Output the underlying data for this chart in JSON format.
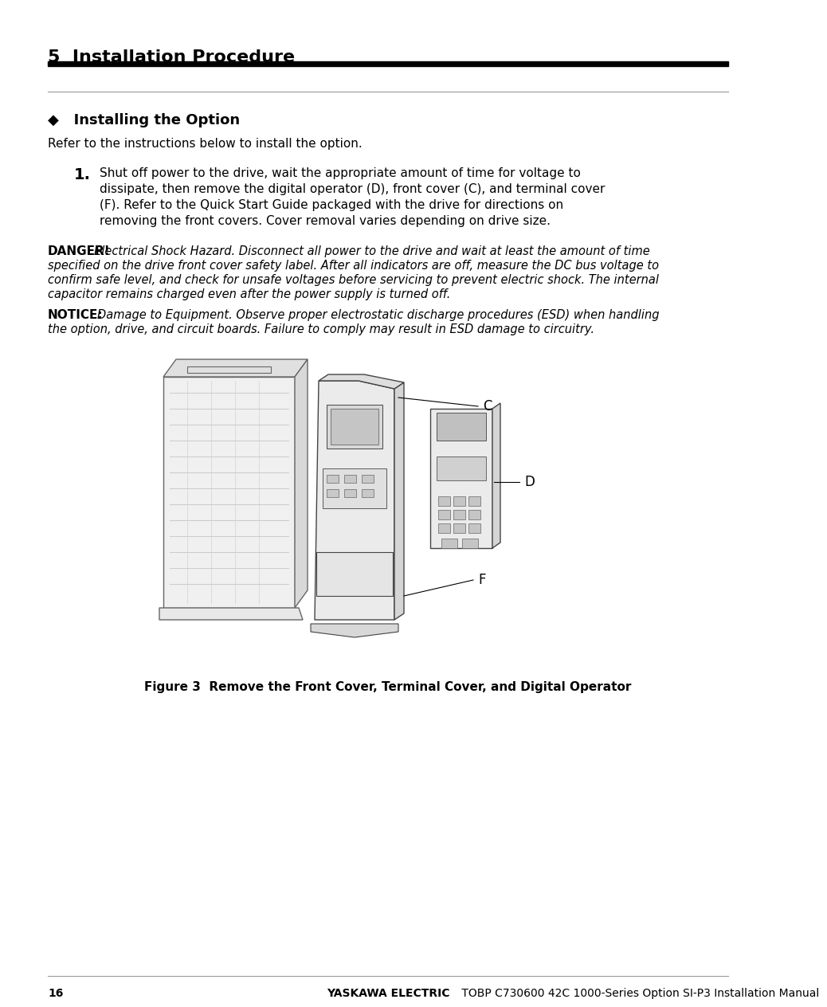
{
  "page_title": "5  Installation Procedure",
  "section_title": "◆   Installing the Option",
  "intro_text": "Refer to the instructions below to install the option.",
  "step1_number": "1.",
  "step1_line1": "Shut off power to the drive, wait the appropriate amount of time for voltage to",
  "step1_line2": "dissipate, then remove the digital operator (D), front cover (C), and terminal cover",
  "step1_line3": "(F). Refer to the Quick Start Guide packaged with the drive for directions on",
  "step1_line4": "removing the front covers. Cover removal varies depending on drive size.",
  "danger_label": "DANGER!",
  "danger_body": "Electrical Shock Hazard. Disconnect all power to the drive and wait at least the amount of time\nspecified on the drive front cover safety label. After all indicators are off, measure the DC bus voltage to\nconfirm safe level, and check for unsafe voltages before servicing to prevent electric shock. The internal\ncapacitor remains charged even after the power supply is turned off.",
  "notice_label": "NOTICE:",
  "notice_body": "Damage to Equipment. Observe proper electrostatic discharge procedures (ESD) when handling\nthe option, drive, and circuit boards. Failure to comply may result in ESD damage to circuitry.",
  "figure_caption": "Figure 3  Remove the Front Cover, Terminal Cover, and Digital Operator",
  "footer_page": "16",
  "footer_bold": "YASKAWA ELECTRIC",
  "footer_normal": " TOBP C730600 42C 1000-Series Option SI-P3 Installation Manual",
  "bg_color": "#ffffff",
  "text_color": "#000000",
  "draw_color": "#cccccc",
  "draw_dark": "#888888"
}
